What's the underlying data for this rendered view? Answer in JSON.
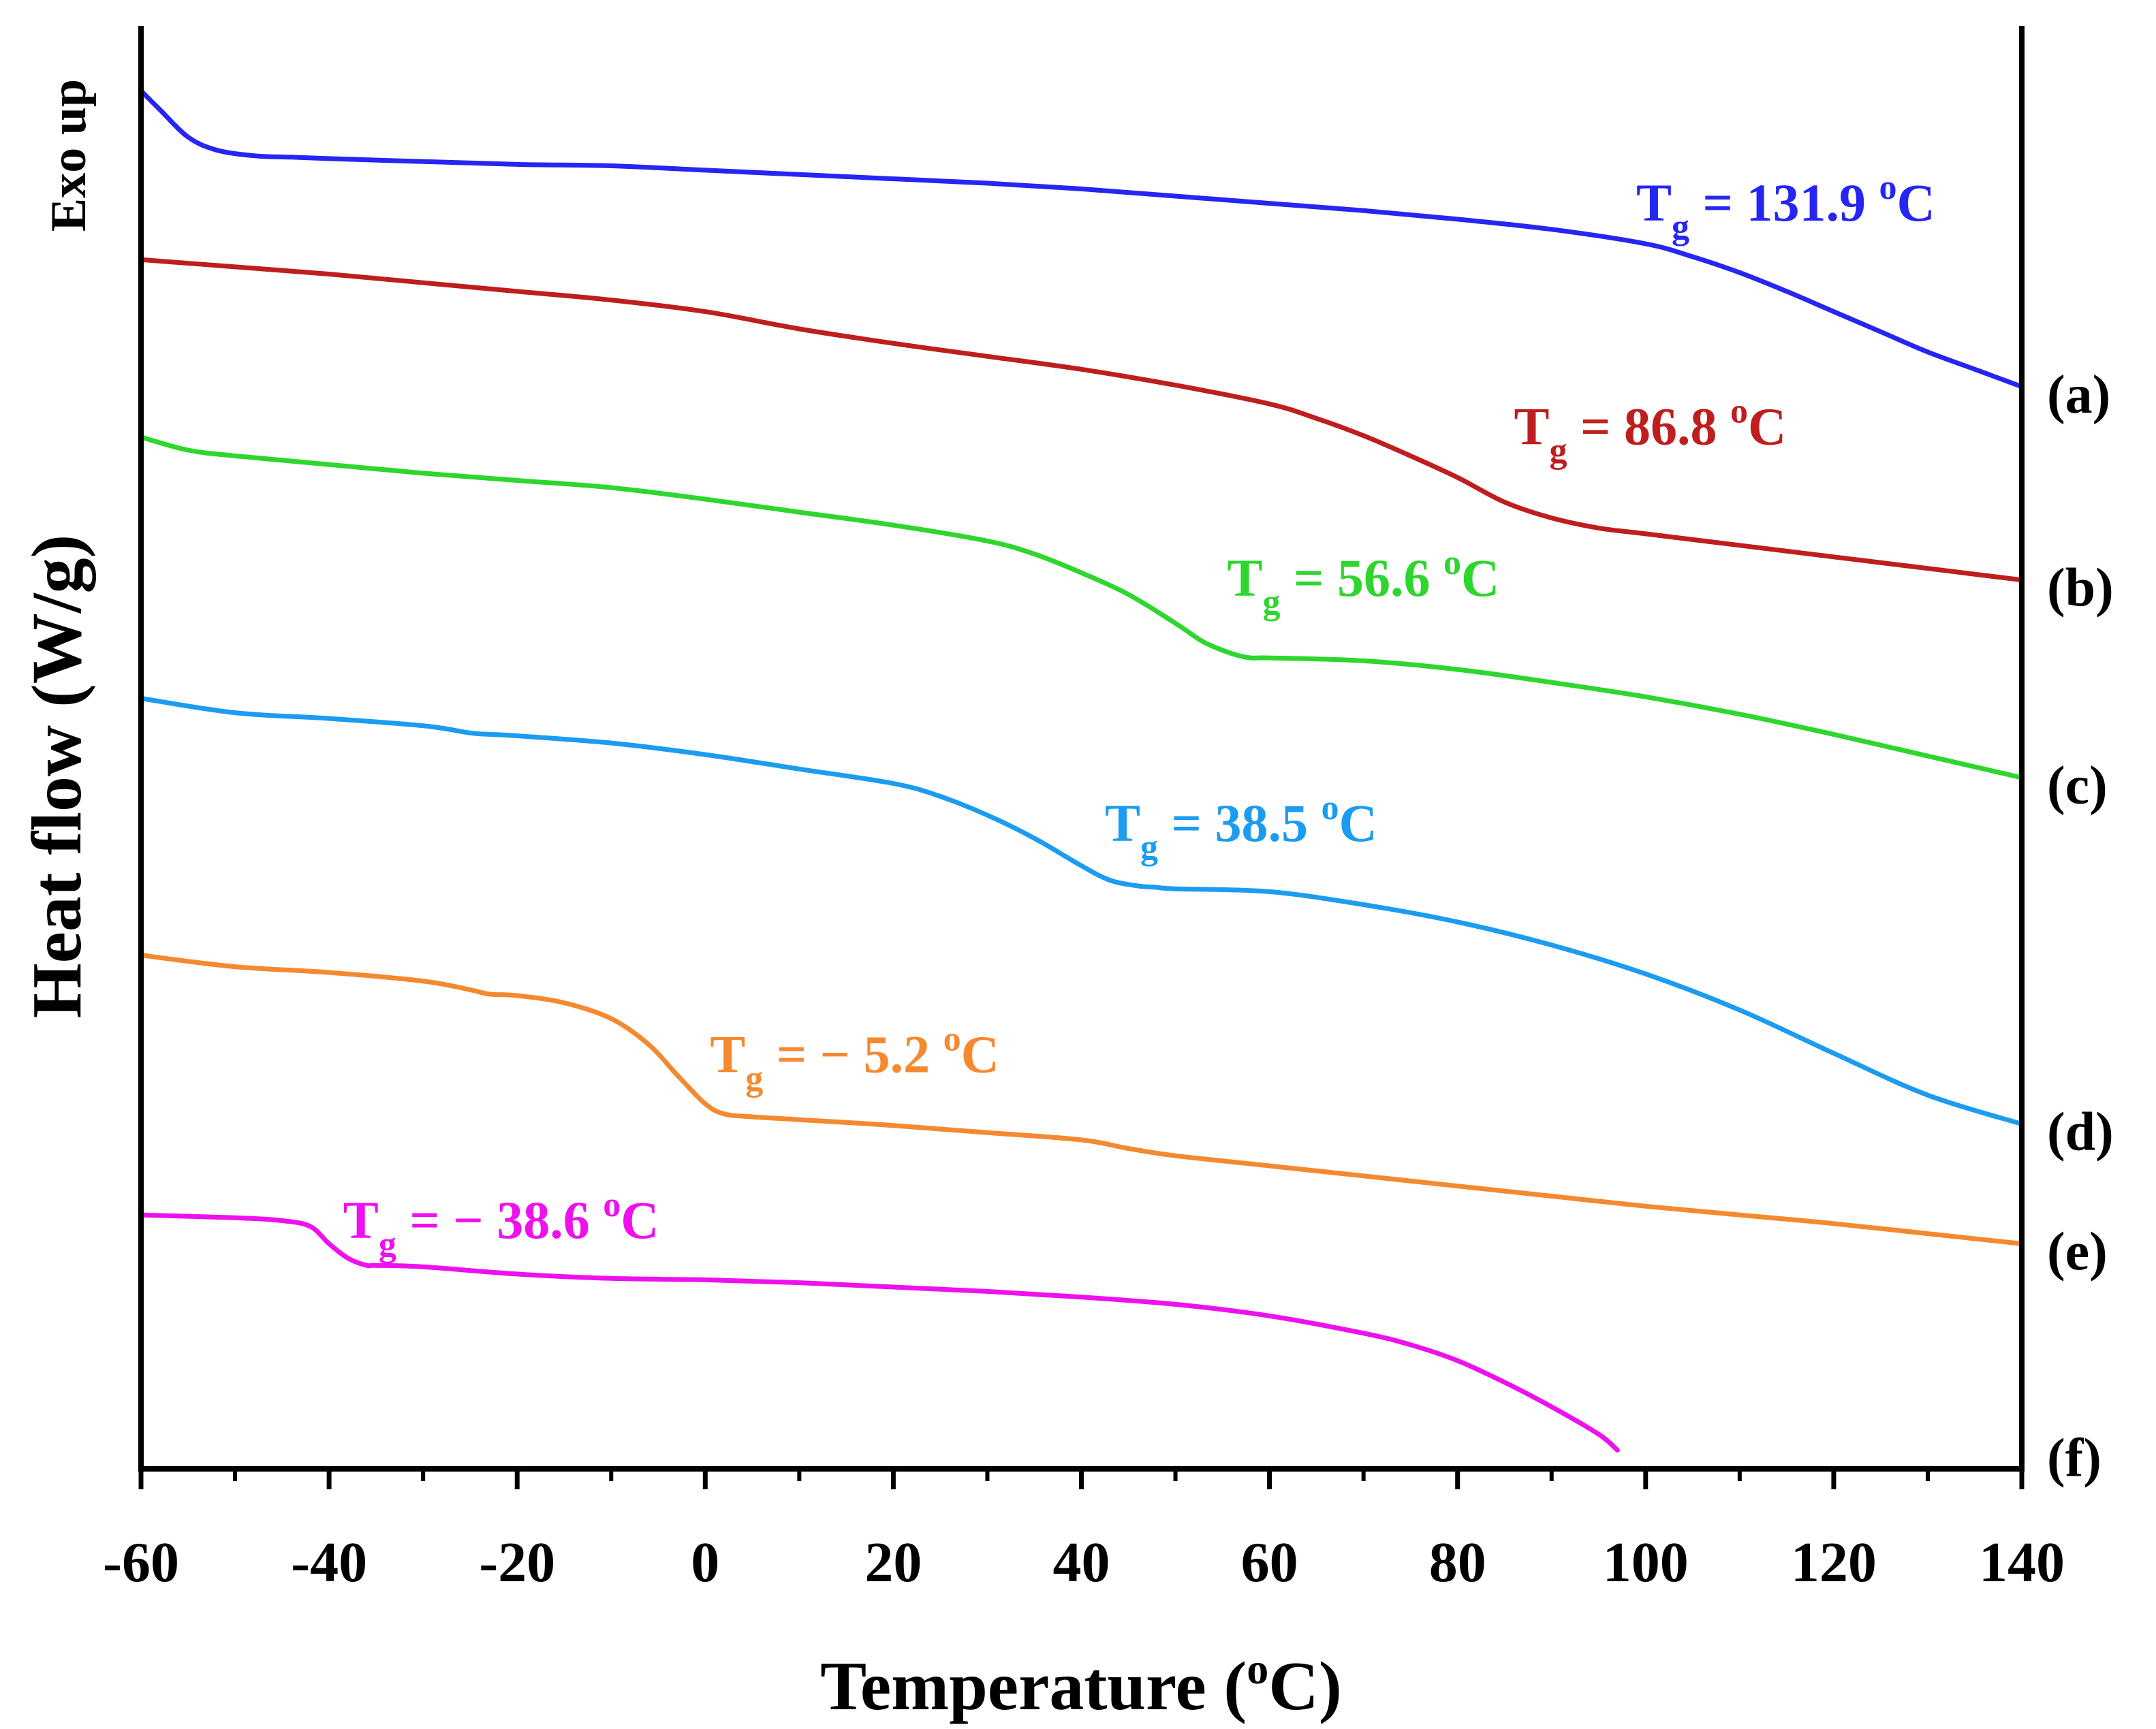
{
  "chart_data": {
    "type": "line",
    "title": "",
    "xlabel": "Temperature (oC)",
    "xlabel_parts": {
      "main": "Temperature (",
      "sup": "o",
      "tail": "C)"
    },
    "ylabel": "Heat flow (W/g)",
    "exo_label": "Exo up",
    "xlim": [
      -60,
      140
    ],
    "ylim": [
      0,
      100
    ],
    "xticks": [
      -60,
      -40,
      -20,
      0,
      20,
      40,
      60,
      80,
      100,
      120,
      140
    ],
    "xtick_labels": [
      "-60",
      "-40",
      "-20",
      "0",
      "20",
      "40",
      "60",
      "80",
      "100",
      "120",
      "140"
    ],
    "y_tick_labels_shown": false,
    "grid": false,
    "series": [
      {
        "name": "(a)",
        "color": "#2626f2",
        "annotation": {
          "sub": "g",
          "value": "= 131.9",
          "sup": "o",
          "unit": "C",
          "text": "Tg = 131.9 oC",
          "anchor": [
            99,
            86.5
          ]
        },
        "x": [
          -60,
          -58,
          -55,
          -52,
          -48,
          -44,
          -40,
          -30,
          -20,
          -10,
          0,
          10,
          20,
          30,
          40,
          50,
          60,
          70,
          80,
          90,
          100,
          105,
          110,
          115,
          120,
          125,
          130,
          135,
          140
        ],
        "y": [
          95.5,
          94.2,
          92.3,
          91.4,
          91.0,
          90.9,
          90.8,
          90.6,
          90.4,
          90.3,
          90.0,
          89.7,
          89.4,
          89.1,
          88.7,
          88.2,
          87.7,
          87.2,
          86.6,
          85.9,
          84.9,
          84.0,
          82.9,
          81.6,
          80.2,
          78.8,
          77.4,
          76.2,
          75.0
        ]
      },
      {
        "name": "(b)",
        "color": "#bf1e1e",
        "annotation": {
          "sub": "g",
          "value": "= 86.8",
          "sup": "o",
          "unit": "C",
          "text": "Tg = 86.8 oC",
          "anchor": [
            86,
            71.0
          ]
        },
        "x": [
          -60,
          -50,
          -40,
          -30,
          -20,
          -10,
          0,
          10,
          20,
          30,
          40,
          50,
          60,
          65,
          70,
          75,
          80,
          85,
          90,
          95,
          100,
          110,
          120,
          130,
          140
        ],
        "y": [
          83.8,
          83.3,
          82.8,
          82.2,
          81.6,
          81.0,
          80.2,
          79.0,
          78.0,
          77.1,
          76.2,
          75.1,
          73.8,
          72.8,
          71.6,
          70.2,
          68.7,
          67.0,
          65.9,
          65.2,
          64.8,
          64.0,
          63.2,
          62.4,
          61.6
        ]
      },
      {
        "name": "(c)",
        "color": "#2ed62e",
        "annotation": {
          "sub": "g",
          "value": "= 56.6",
          "sup": "o",
          "unit": "C",
          "text": "Tg = 56.6 oC",
          "anchor": [
            55.5,
            60.5
          ]
        },
        "x": [
          -60,
          -55,
          -50,
          -40,
          -30,
          -20,
          -10,
          0,
          10,
          20,
          30,
          35,
          40,
          45,
          50,
          53,
          56,
          58,
          60,
          70,
          80,
          90,
          100,
          110,
          120,
          130,
          140
        ],
        "y": [
          71.5,
          70.6,
          70.2,
          69.6,
          69.0,
          68.5,
          68.0,
          67.2,
          66.3,
          65.4,
          64.3,
          63.4,
          62.1,
          60.6,
          58.6,
          57.3,
          56.5,
          56.2,
          56.2,
          56.0,
          55.4,
          54.5,
          53.5,
          52.3,
          50.9,
          49.4,
          47.9
        ]
      },
      {
        "name": "(d)",
        "color": "#1c9cf0",
        "annotation": {
          "sub": "g",
          "value": "= 38.5",
          "sup": "o",
          "unit": "C",
          "text": "Tg = 38.5 oC",
          "anchor": [
            42.5,
            43.5
          ]
        },
        "x": [
          -60,
          -50,
          -40,
          -30,
          -25,
          -23,
          -20,
          -10,
          0,
          10,
          20,
          25,
          30,
          35,
          40,
          43,
          46,
          48,
          50,
          60,
          70,
          80,
          90,
          100,
          110,
          120,
          130,
          140
        ],
        "y": [
          53.4,
          52.4,
          52.0,
          51.5,
          51.0,
          50.9,
          50.8,
          50.3,
          49.5,
          48.5,
          47.5,
          46.6,
          45.3,
          43.7,
          41.8,
          40.8,
          40.4,
          40.3,
          40.2,
          40.0,
          39.1,
          37.9,
          36.3,
          34.3,
          31.8,
          28.8,
          25.9,
          23.9
        ]
      },
      {
        "name": "(e)",
        "color": "#f5892f",
        "annotation": {
          "sub": "g",
          "value": "=  − 5.2",
          "sup": "o",
          "unit": "C",
          "text": "Tg =  − 5.2 oC",
          "anchor": [
            0.5,
            27.5
          ]
        },
        "x": [
          -60,
          -50,
          -40,
          -30,
          -25,
          -23,
          -20,
          -15,
          -10,
          -6,
          -3,
          0,
          2,
          5,
          10,
          20,
          30,
          40,
          45,
          50,
          60,
          70,
          80,
          90,
          100,
          110,
          120,
          130,
          140
        ],
        "y": [
          35.6,
          34.8,
          34.4,
          33.8,
          33.2,
          32.9,
          32.8,
          32.3,
          31.2,
          29.4,
          27.3,
          25.3,
          24.6,
          24.4,
          24.2,
          23.8,
          23.3,
          22.8,
          22.2,
          21.7,
          21.0,
          20.3,
          19.6,
          18.9,
          18.2,
          17.6,
          17.0,
          16.3,
          15.6
        ]
      },
      {
        "name": "(f)",
        "color": "#ee11ee",
        "annotation": {
          "sub": "g",
          "value": "=  − 38.6",
          "sup": "o",
          "unit": "C",
          "text": "Tg =  − 38.6 oC",
          "anchor": [
            -38.5,
            16.0
          ]
        },
        "x": [
          -60,
          -50,
          -45,
          -42,
          -40,
          -38,
          -36,
          -35,
          -30,
          -20,
          -10,
          0,
          10,
          20,
          30,
          40,
          50,
          60,
          70,
          75,
          80,
          85,
          90,
          95,
          97
        ],
        "y": [
          17.6,
          17.4,
          17.2,
          16.8,
          15.6,
          14.6,
          14.1,
          14.1,
          14.0,
          13.5,
          13.2,
          13.1,
          12.9,
          12.6,
          12.3,
          11.9,
          11.4,
          10.6,
          9.4,
          8.6,
          7.5,
          6.0,
          4.3,
          2.4,
          1.3
        ]
      }
    ]
  }
}
